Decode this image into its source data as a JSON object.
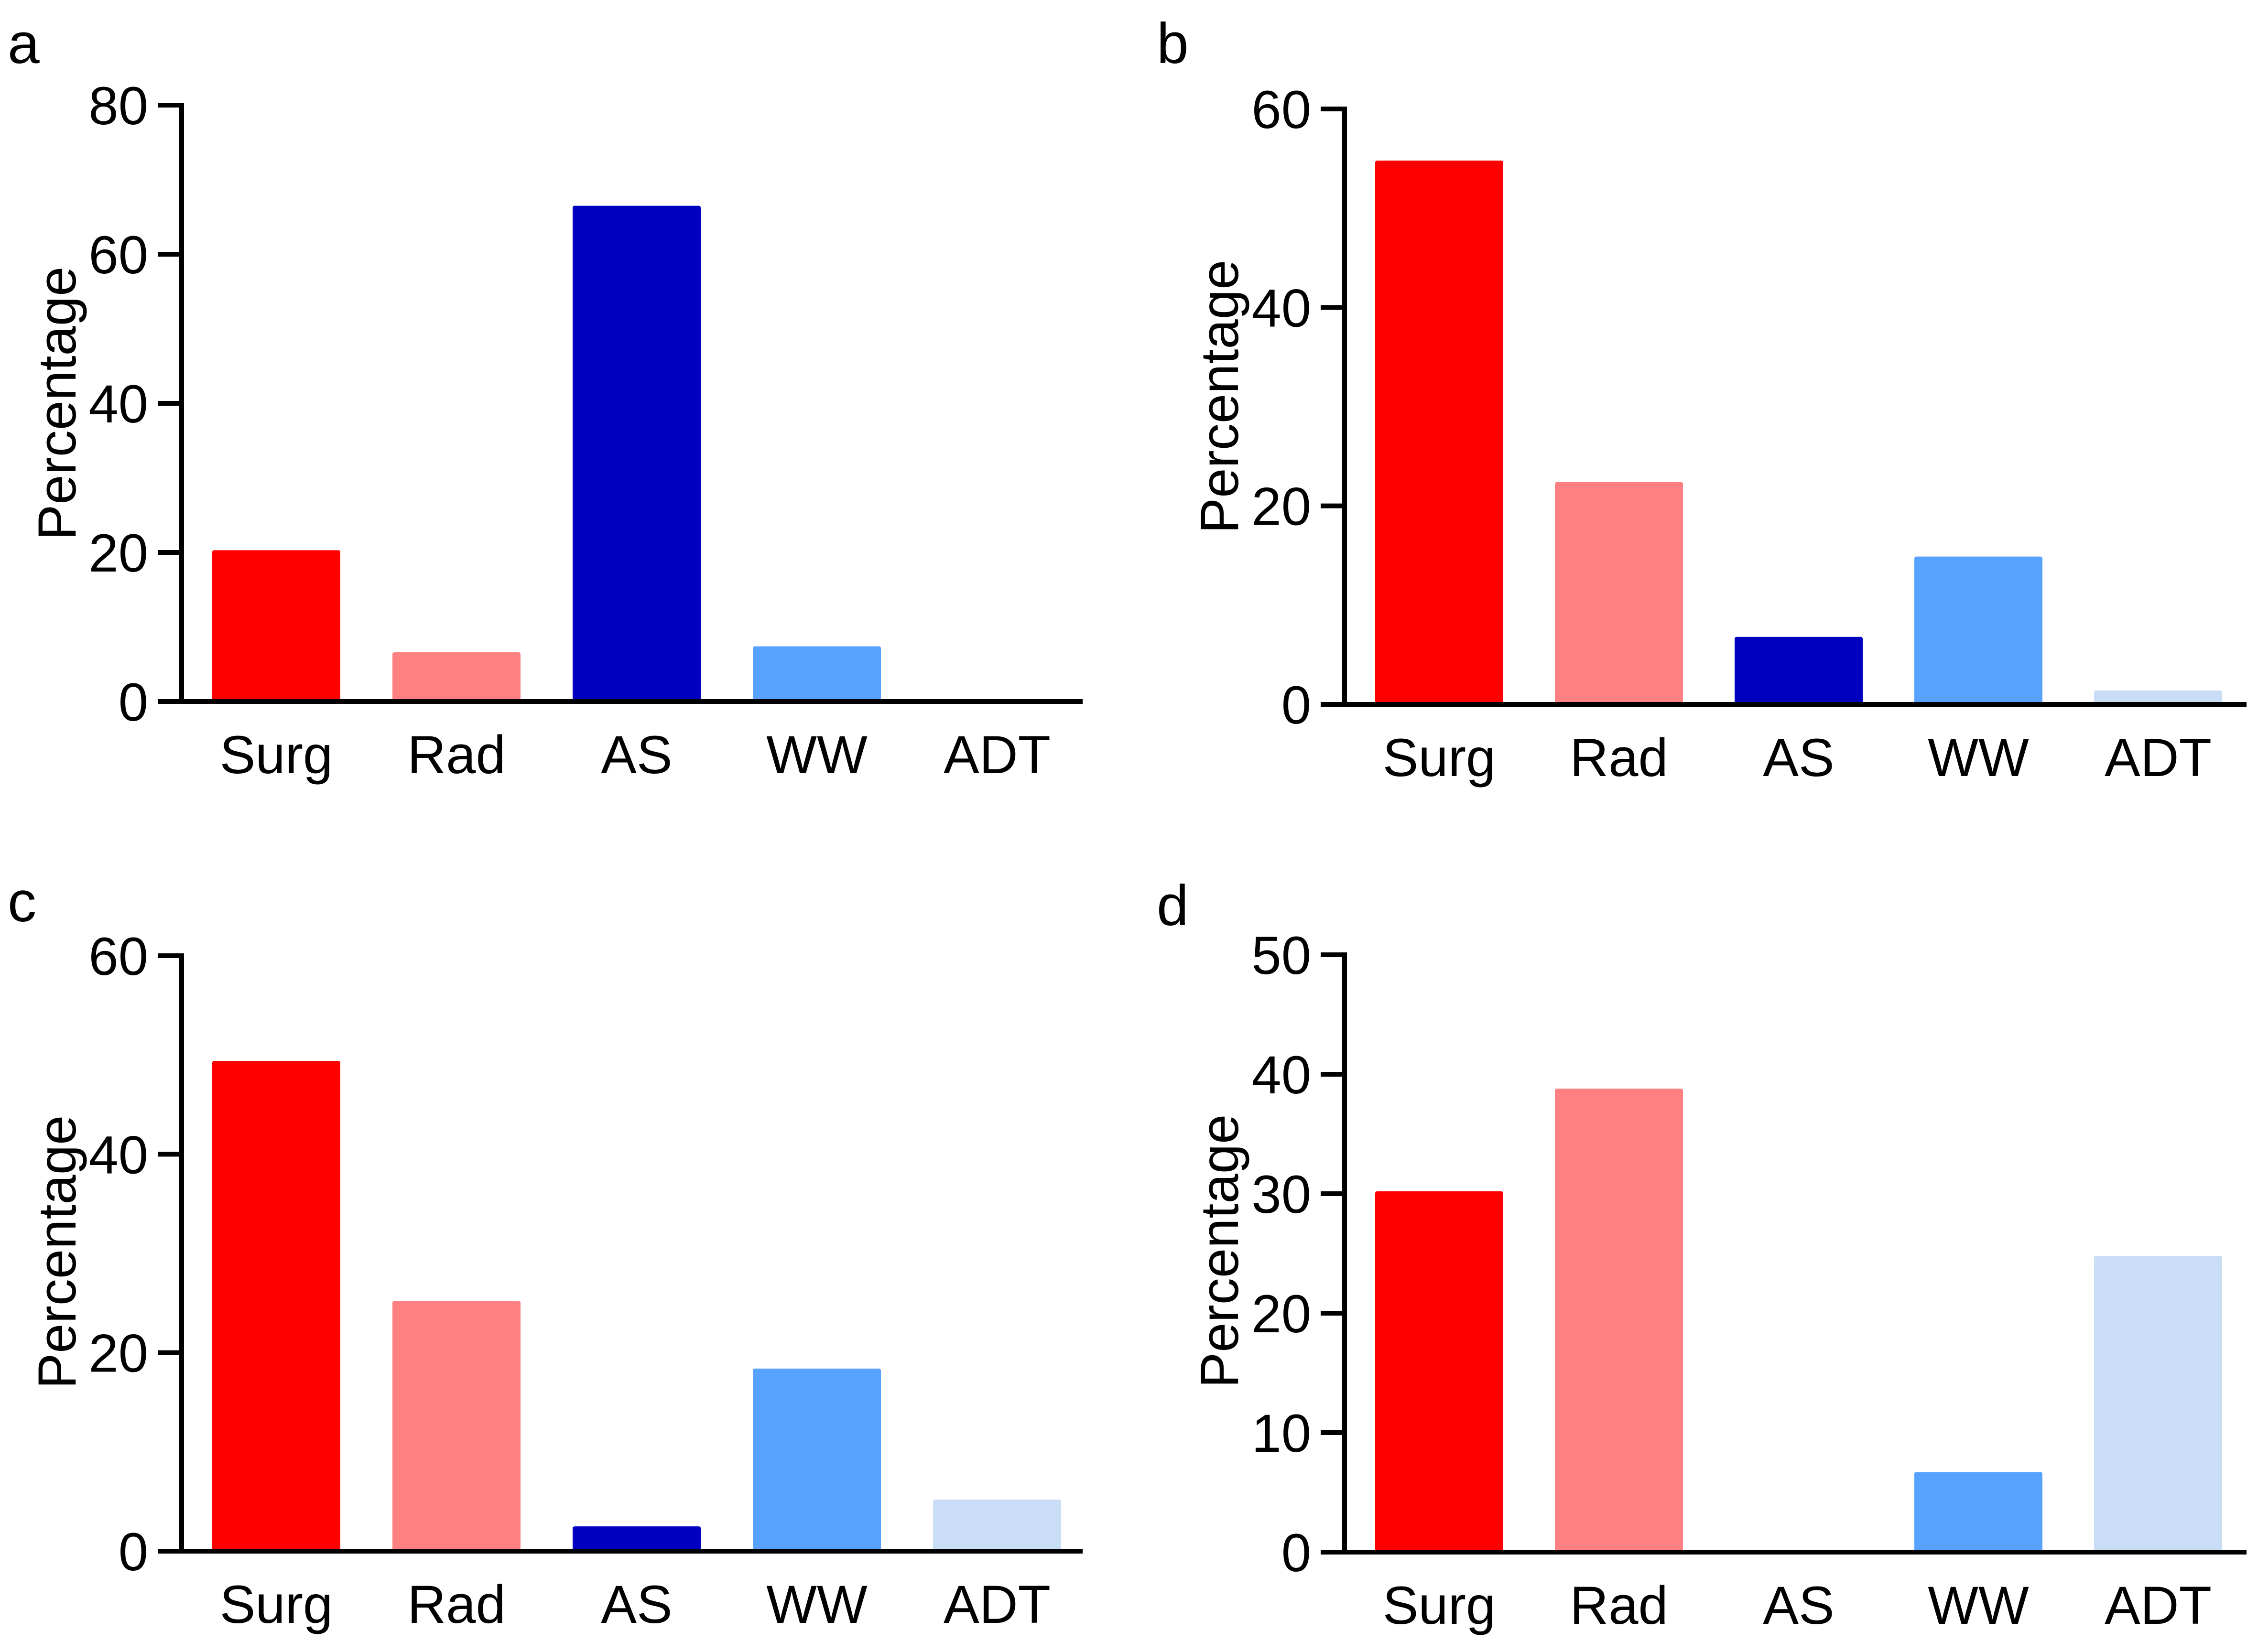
{
  "chart_data": [
    {
      "type": "bar",
      "panel": "a",
      "ylabel": "Percentage",
      "xlabel": "",
      "ylim": [
        0,
        80
      ],
      "yticks": [
        0,
        20,
        40,
        60,
        80
      ],
      "categories": [
        "Surg",
        "Rad",
        "AS",
        "WW",
        "ADT"
      ],
      "values": [
        20.3,
        6.6,
        66.5,
        7.4,
        0
      ]
    },
    {
      "type": "bar",
      "panel": "b",
      "ylabel": "Percentage",
      "xlabel": "",
      "ylim": [
        0,
        60
      ],
      "yticks": [
        0,
        20,
        40,
        60
      ],
      "categories": [
        "Surg",
        "Rad",
        "AS",
        "WW",
        "ADT"
      ],
      "values": [
        54.8,
        22.4,
        6.8,
        14.9,
        1.4
      ]
    },
    {
      "type": "bar",
      "panel": "c",
      "ylabel": "Percentage",
      "xlabel": "",
      "ylim": [
        0,
        60
      ],
      "yticks": [
        0,
        20,
        40,
        60
      ],
      "categories": [
        "Surg",
        "Rad",
        "AS",
        "WW",
        "ADT"
      ],
      "values": [
        49.4,
        25.2,
        2.5,
        18.4,
        5.2
      ]
    },
    {
      "type": "bar",
      "panel": "d",
      "ylabel": "Percentage",
      "xlabel": "",
      "ylim": [
        0,
        50
      ],
      "yticks": [
        0,
        10,
        20,
        30,
        40,
        50
      ],
      "categories": [
        "Surg",
        "Rad",
        "AS",
        "WW",
        "ADT"
      ],
      "values": [
        30.2,
        38.8,
        0,
        6.7,
        24.8
      ]
    }
  ],
  "colors": {
    "Surg": "#ff0000",
    "Rad": "#ff8080",
    "AS": "#0000c0",
    "WW": "#58a2ff",
    "ADT": "#c9ddf7",
    "axis": "#000000"
  }
}
